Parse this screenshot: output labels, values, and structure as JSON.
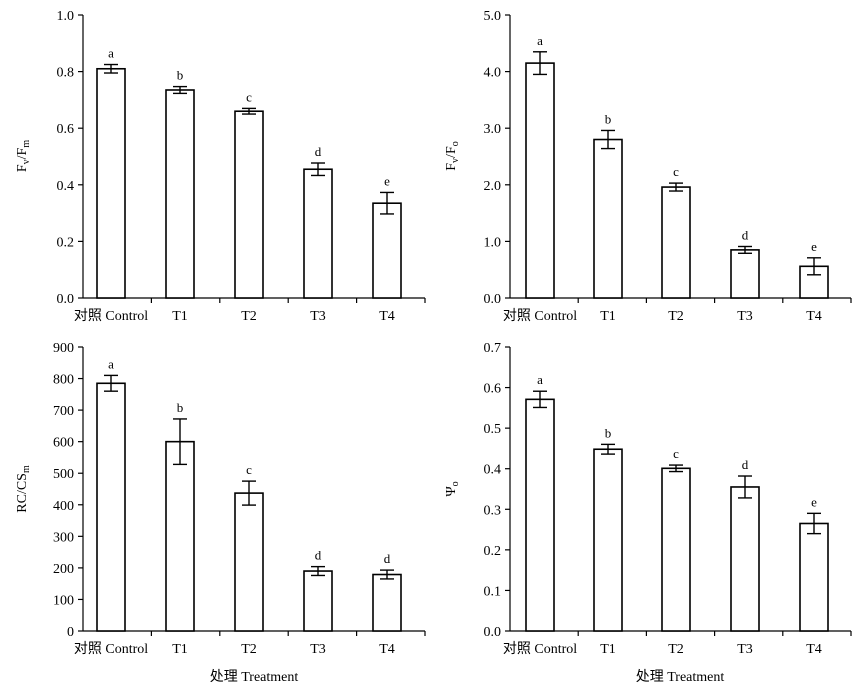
{
  "x_title": "处理 Treatment",
  "chart_data": [
    {
      "type": "bar",
      "ylabel": {
        "main": "F",
        "sub1": "v",
        "mid": "/F",
        "sub2": "m"
      },
      "categories": [
        "对照 Control",
        "T1",
        "T2",
        "T3",
        "T4"
      ],
      "values": [
        0.81,
        0.735,
        0.66,
        0.455,
        0.335
      ],
      "errors": [
        0.015,
        0.012,
        0.01,
        0.022,
        0.038
      ],
      "letters": [
        "a",
        "b",
        "c",
        "d",
        "e"
      ],
      "ylim": [
        0,
        1.0
      ],
      "yticks": [
        "0.0",
        "0.2",
        "0.4",
        "0.6",
        "0.8",
        "1.0"
      ]
    },
    {
      "type": "bar",
      "ylabel": {
        "main": "F",
        "sub1": "v",
        "mid": "/F",
        "sub2": "o"
      },
      "categories": [
        "对照 Control",
        "T1",
        "T2",
        "T3",
        "T4"
      ],
      "values": [
        4.15,
        2.8,
        1.96,
        0.85,
        0.56
      ],
      "errors": [
        0.2,
        0.16,
        0.07,
        0.06,
        0.15
      ],
      "letters": [
        "a",
        "b",
        "c",
        "d",
        "e"
      ],
      "ylim": [
        0,
        5.0
      ],
      "yticks": [
        "0.0",
        "1.0",
        "2.0",
        "3.0",
        "4.0",
        "5.0"
      ]
    },
    {
      "type": "bar",
      "ylabel": {
        "main": "RC/CS",
        "sub1": "m",
        "mid": "",
        "sub2": ""
      },
      "categories": [
        "对照 Control",
        "T1",
        "T2",
        "T3",
        "T4"
      ],
      "values": [
        785,
        600,
        437,
        190,
        179
      ],
      "errors": [
        25,
        72,
        38,
        14,
        14
      ],
      "letters": [
        "a",
        "b",
        "c",
        "d",
        "d"
      ],
      "ylim": [
        0,
        900
      ],
      "yticks": [
        "0",
        "100",
        "200",
        "300",
        "400",
        "500",
        "600",
        "700",
        "800",
        "900"
      ]
    },
    {
      "type": "bar",
      "ylabel": {
        "main": "Ψ",
        "sub1": "o",
        "mid": "",
        "sub2": ""
      },
      "categories": [
        "对照 Control",
        "T1",
        "T2",
        "T3",
        "T4"
      ],
      "values": [
        0.571,
        0.448,
        0.401,
        0.355,
        0.265
      ],
      "errors": [
        0.02,
        0.012,
        0.008,
        0.027,
        0.025
      ],
      "letters": [
        "a",
        "b",
        "c",
        "d",
        "e"
      ],
      "ylim": [
        0,
        0.7
      ],
      "yticks": [
        "0.0",
        "0.1",
        "0.2",
        "0.3",
        "0.4",
        "0.5",
        "0.6",
        "0.7"
      ]
    }
  ]
}
